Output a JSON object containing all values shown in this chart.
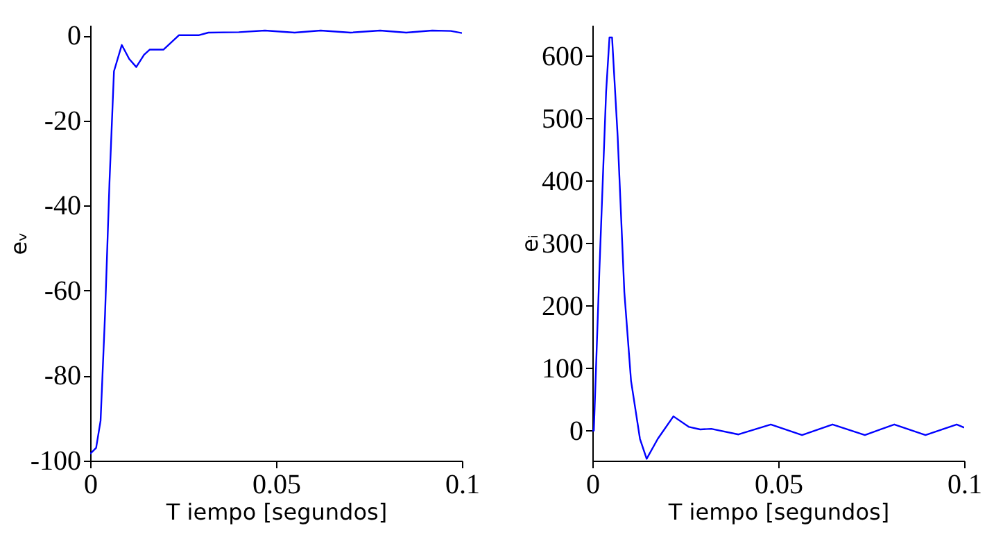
{
  "chart_data": [
    {
      "type": "line",
      "xlabel": "T iempo [segundos]",
      "ylabel": "eᵥ",
      "xlim": [
        0,
        0.1
      ],
      "ylim": [
        -100,
        2.5
      ],
      "xticks": [
        0,
        0.05,
        0.1
      ],
      "yticks": [
        -100,
        -80,
        -60,
        -40,
        -20,
        0
      ],
      "grid": false,
      "line_style": "solid",
      "marker": "none",
      "series": [
        {
          "color": "#0000ff",
          "x": [
            0,
            0.0016,
            0.0028,
            0.004,
            0.0052,
            0.0064,
            0.0085,
            0.0105,
            0.0124,
            0.0145,
            0.016,
            0.0197,
            0.0239,
            0.0293,
            0.0318,
            0.04,
            0.047,
            0.055,
            0.062,
            0.07,
            0.078,
            0.085,
            0.092,
            0.097,
            0.1
          ],
          "values": [
            -98.4,
            -97,
            -90.6,
            -65.6,
            -34.4,
            -8.4,
            -2.2,
            -5.5,
            -7.4,
            -4.5,
            -3.3,
            -3.3,
            0.1,
            0.1,
            0.7,
            0.8,
            1.2,
            0.7,
            1.2,
            0.7,
            1.2,
            0.7,
            1.2,
            1.1,
            0.6
          ]
        }
      ]
    },
    {
      "type": "line",
      "xlabel": "T iempo [segundos]",
      "ylabel": "eᵢ",
      "xlim": [
        0,
        0.1
      ],
      "ylim": [
        -48,
        650
      ],
      "xticks": [
        0,
        0.05,
        0.1
      ],
      "yticks": [
        0,
        100,
        200,
        300,
        400,
        500,
        600
      ],
      "grid": false,
      "line_style": "solid",
      "marker": "none",
      "series": [
        {
          "color": "#0000ff",
          "x": [
            0,
            0.0004,
            0.0019,
            0.0037,
            0.0046,
            0.0053,
            0.0068,
            0.0086,
            0.0104,
            0.0128,
            0.0146,
            0.0176,
            0.0218,
            0.026,
            0.029,
            0.032,
            0.0393,
            0.048,
            0.0564,
            0.0646,
            0.0733,
            0.0812,
            0.0896,
            0.098,
            0.1
          ],
          "values": [
            0,
            0,
            258,
            543,
            630,
            630,
            472,
            222,
            80,
            -13,
            -45,
            -13,
            23,
            6,
            2,
            3,
            -6,
            10,
            -7,
            10,
            -7,
            10,
            -7,
            10,
            5
          ]
        }
      ]
    }
  ]
}
